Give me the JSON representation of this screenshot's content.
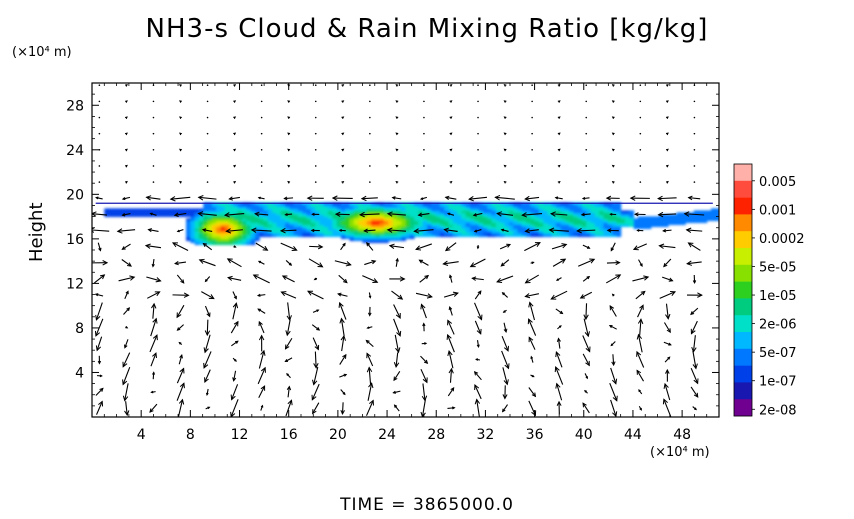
{
  "chart_data": {
    "type": "heatmap",
    "title": "NH3-s Cloud & Rain Mixing Ratio [kg/kg]",
    "ylabel": "Height",
    "y_unit": "(×10⁴ m)",
    "x_unit": "(×10⁴ m)",
    "footer": "TIME = 3865000.0",
    "x_ticks": [
      4,
      8,
      12,
      16,
      20,
      24,
      28,
      32,
      36,
      40,
      44,
      48
    ],
    "y_ticks": [
      4,
      8,
      12,
      16,
      20,
      24,
      28
    ],
    "xlim": [
      0,
      51
    ],
    "ylim": [
      0,
      30
    ],
    "colorbar": {
      "labels": [
        "0.005",
        "0.001",
        "0.0002",
        "5e-05",
        "1e-05",
        "2e-06",
        "5e-07",
        "1e-07",
        "2e-08"
      ],
      "colors": [
        "#ffb0a8",
        "#ff4c3c",
        "#ff2200",
        "#ff8a00",
        "#ffcc00",
        "#c8ee00",
        "#88e000",
        "#2ed020",
        "#00cc80",
        "#00e0c8",
        "#00b8ff",
        "#0078ff",
        "#0040e8",
        "#1818b0",
        "#700090"
      ]
    },
    "cloud_region": {
      "x_range": [
        1,
        51
      ],
      "y_range": [
        15.5,
        19.2
      ],
      "peak_centers_x": [
        10.5,
        23
      ]
    }
  }
}
